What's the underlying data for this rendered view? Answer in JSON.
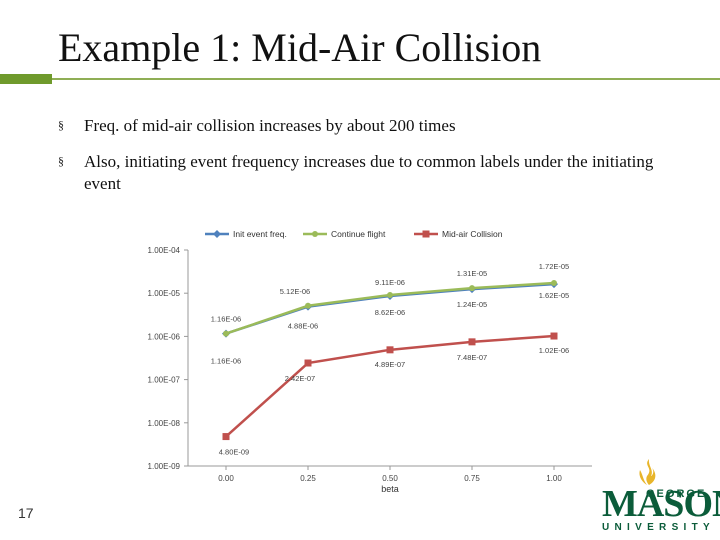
{
  "slide": {
    "title": "Example 1: Mid-Air Collision",
    "bullets": [
      "Freq. of mid-air collision increases by about 200 times",
      "Also, initiating event frequency increases due to common labels under the initiating event"
    ],
    "bullet_mark": "§",
    "slide_number": "17"
  },
  "logo": {
    "george": "GEORGE",
    "mason": "MASON",
    "university": "UNIVERSITY"
  },
  "colors": {
    "accent_green": "#6f9a2c",
    "logo_green": "#0b5c3a",
    "logo_gold": "#e8b52a"
  },
  "chart_data": {
    "type": "line",
    "title": "",
    "xlabel": "beta",
    "ylabel": "",
    "yscale": "log",
    "ylim": [
      1e-09,
      0.0001
    ],
    "x": [
      0.0,
      0.25,
      0.5,
      0.75,
      1.0
    ],
    "x_tick_labels": [
      "0.00",
      "0.25",
      "0.50",
      "0.75",
      "1.00"
    ],
    "y_tick_labels": [
      "1.00E-04",
      "1.00E-05",
      "1.00E-06",
      "1.00E-07",
      "1.00E-08",
      "1.00E-09"
    ],
    "legend_position": "top",
    "grid": false,
    "series": [
      {
        "name": "Init event freq.",
        "color": "#4f81bd",
        "marker": "diamond",
        "values": [
          1.16e-06,
          4.88e-06,
          8.62e-06,
          1.24e-05,
          1.62e-05
        ],
        "labels": [
          "1.16E-06",
          "4.88E-06",
          "8.62E-06",
          "1.24E-05",
          "1.62E-05"
        ]
      },
      {
        "name": "Continue flight",
        "color": "#9bbb59",
        "marker": "circle",
        "values": [
          1.16e-06,
          5.12e-06,
          9.11e-06,
          1.31e-05,
          1.72e-05
        ],
        "labels": [
          "1.16E-06",
          "5.12E-06",
          "9.11E-06",
          "1.31E-05",
          "1.72E-05"
        ]
      },
      {
        "name": "Mid-air Collision",
        "color": "#c0504d",
        "marker": "square",
        "values": [
          4.8e-09,
          2.42e-07,
          4.89e-07,
          7.48e-07,
          1.02e-06
        ],
        "labels": [
          "4.80E-09",
          "2.42E-07",
          "4.89E-07",
          "7.48E-07",
          "1.02E-06"
        ]
      }
    ]
  }
}
